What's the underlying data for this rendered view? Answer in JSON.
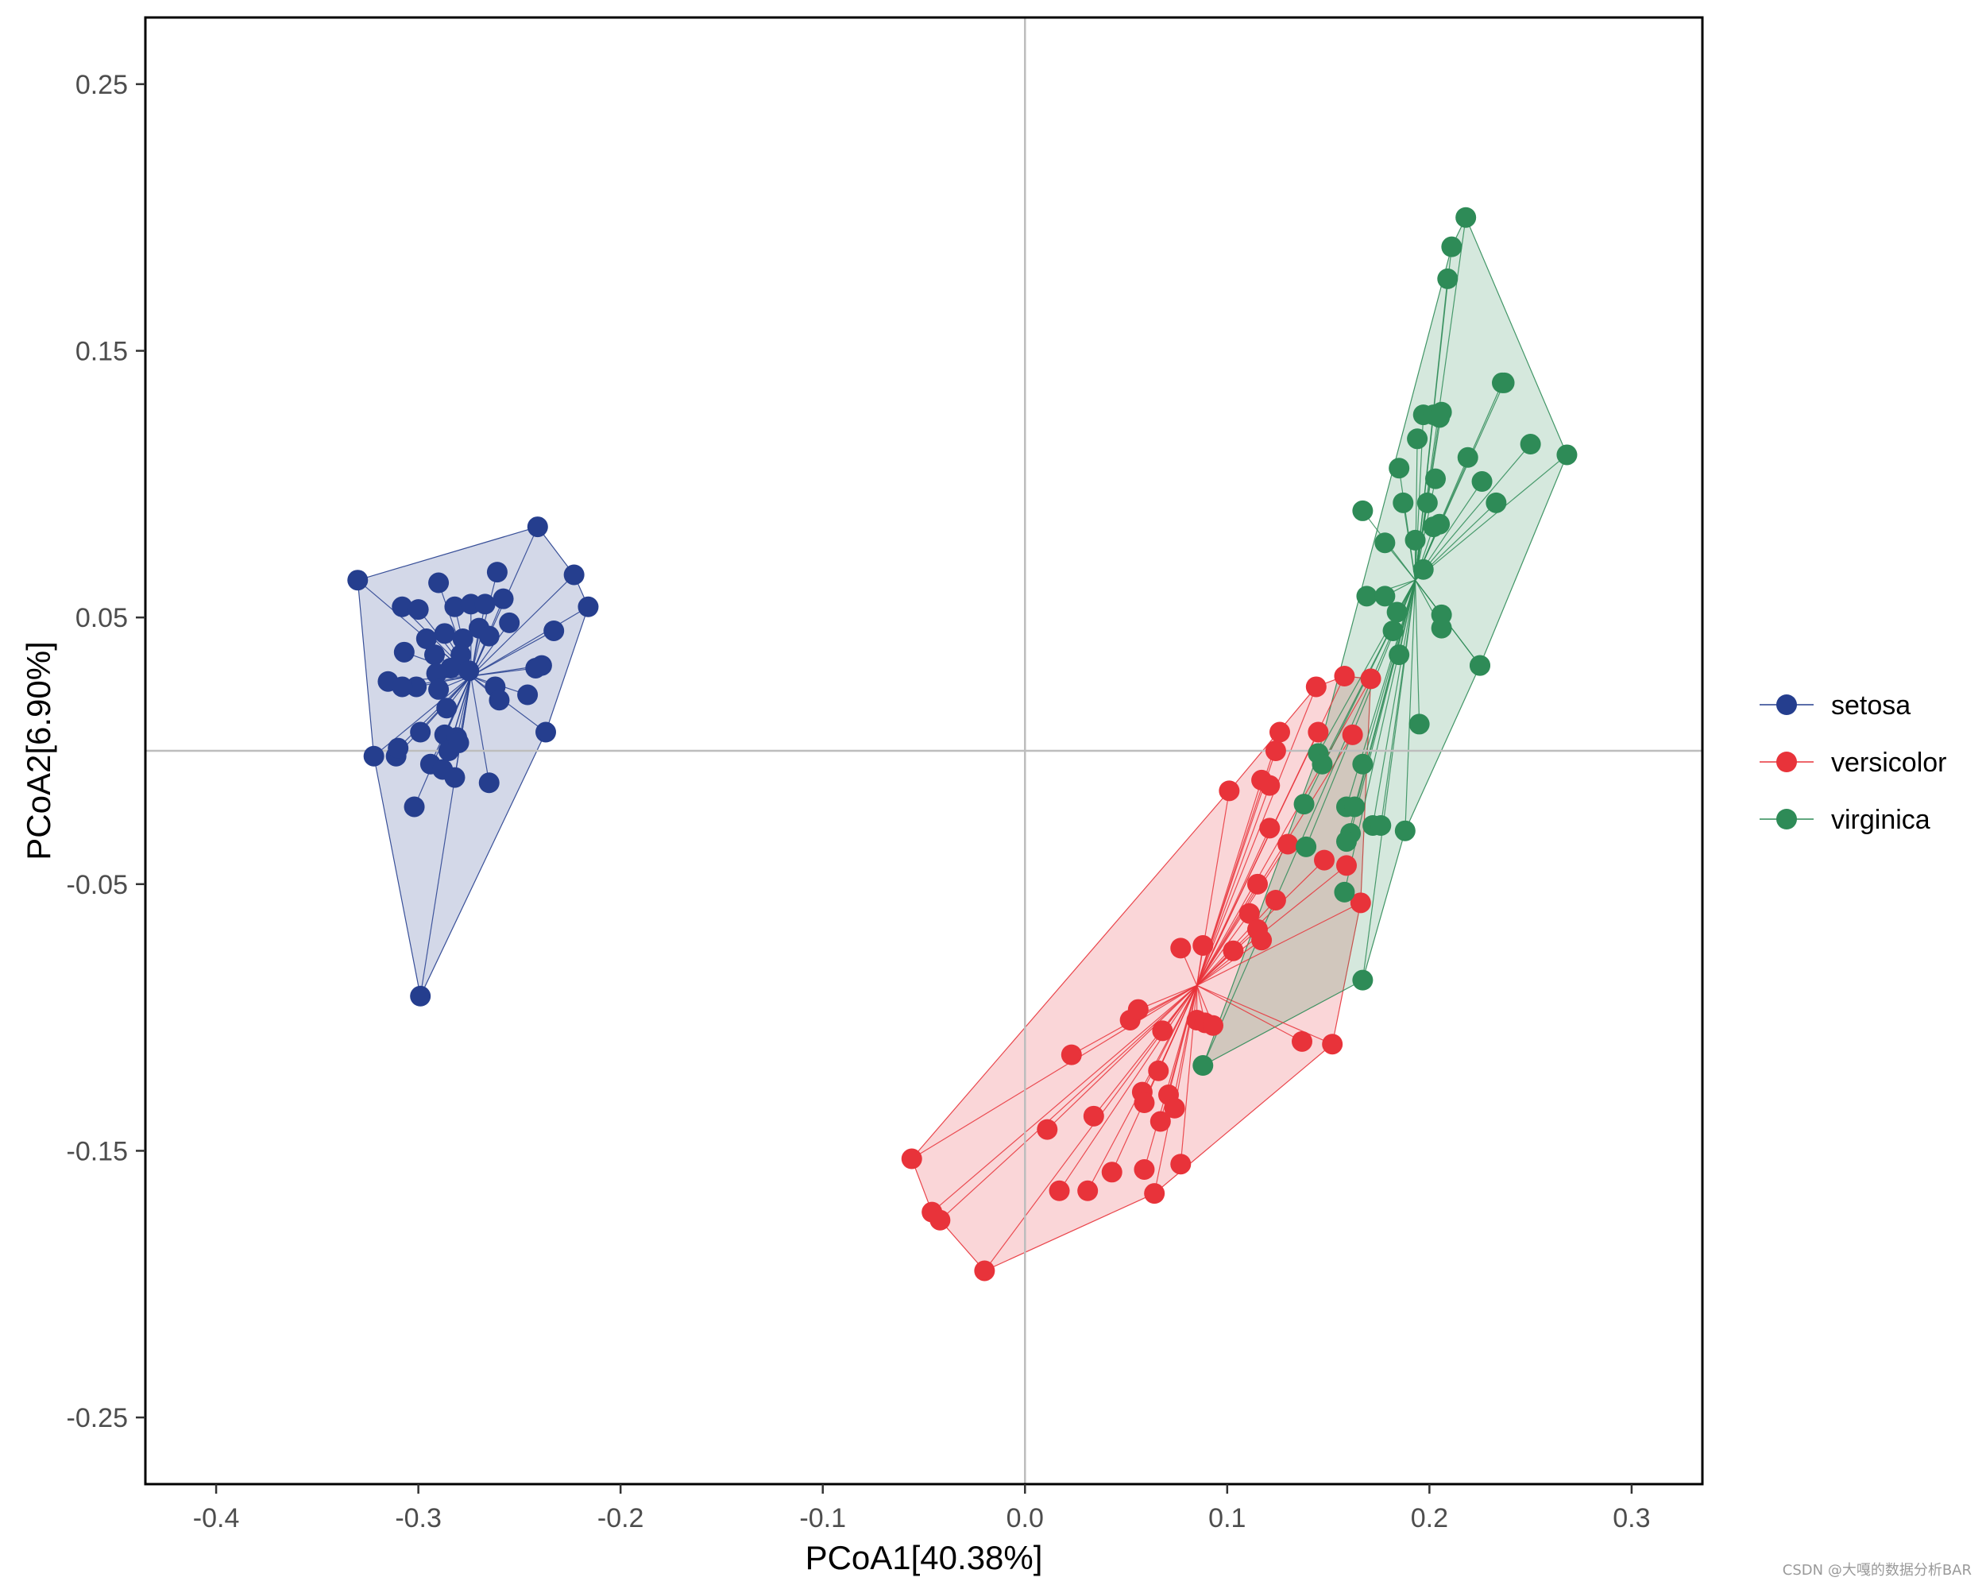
{
  "chart_data": {
    "type": "scatter",
    "title": "",
    "xlabel": "PCoA1[40.38%]",
    "ylabel": "PCoA2[6.90%]",
    "xlim": [
      -0.435,
      0.335
    ],
    "ylim": [
      -0.275,
      0.275
    ],
    "xticks": [
      -0.4,
      -0.3,
      -0.2,
      -0.1,
      0.0,
      0.1,
      0.2,
      0.3
    ],
    "xtick_labels": [
      "-0.4",
      "-0.3",
      "-0.2",
      "-0.1",
      "0.0",
      "0.1",
      "0.2",
      "0.3"
    ],
    "yticks": [
      0.25,
      0.15,
      0.05,
      -0.05,
      -0.15,
      -0.25
    ],
    "ytick_labels": [
      "0.25",
      "0.15",
      "0.05",
      "-0.05",
      "-0.15",
      "-0.25"
    ],
    "reference_lines": {
      "x": 0,
      "y": 0
    },
    "grid": false,
    "legend_position": "right",
    "series": [
      {
        "name": "setosa",
        "color": "#253E8E",
        "centroid": [
          -0.274,
          0.028
        ],
        "hull": [
          [
            -0.33,
            0.064
          ],
          [
            -0.241,
            0.084
          ],
          [
            -0.223,
            0.066
          ],
          [
            -0.216,
            0.054
          ],
          [
            -0.237,
            0.007
          ],
          [
            -0.299,
            -0.092
          ],
          [
            -0.322,
            -0.002
          ]
        ],
        "points": [
          [
            -0.33,
            0.064
          ],
          [
            -0.241,
            0.084
          ],
          [
            -0.223,
            0.066
          ],
          [
            -0.216,
            0.054
          ],
          [
            -0.237,
            0.007
          ],
          [
            -0.299,
            -0.092
          ],
          [
            -0.322,
            -0.002
          ],
          [
            -0.302,
            -0.021
          ],
          [
            -0.308,
            0.054
          ],
          [
            -0.3,
            0.053
          ],
          [
            -0.29,
            0.063
          ],
          [
            -0.282,
            0.054
          ],
          [
            -0.274,
            0.055
          ],
          [
            -0.267,
            0.055
          ],
          [
            -0.261,
            0.067
          ],
          [
            -0.258,
            0.057
          ],
          [
            -0.255,
            0.048
          ],
          [
            -0.296,
            0.042
          ],
          [
            -0.287,
            0.044
          ],
          [
            -0.278,
            0.042
          ],
          [
            -0.27,
            0.046
          ],
          [
            -0.265,
            0.043
          ],
          [
            -0.307,
            0.037
          ],
          [
            -0.292,
            0.036
          ],
          [
            -0.279,
            0.036
          ],
          [
            -0.284,
            0.031
          ],
          [
            -0.291,
            0.029
          ],
          [
            -0.275,
            0.03
          ],
          [
            -0.233,
            0.045
          ],
          [
            -0.315,
            0.026
          ],
          [
            -0.301,
            0.024
          ],
          [
            -0.308,
            0.024
          ],
          [
            -0.29,
            0.023
          ],
          [
            -0.262,
            0.024
          ],
          [
            -0.26,
            0.019
          ],
          [
            -0.246,
            0.021
          ],
          [
            -0.239,
            0.032
          ],
          [
            -0.242,
            0.031
          ],
          [
            -0.286,
            0.016
          ],
          [
            -0.299,
            0.007
          ],
          [
            -0.287,
            0.006
          ],
          [
            -0.281,
            0.005
          ],
          [
            -0.311,
            -0.002
          ],
          [
            -0.294,
            -0.005
          ],
          [
            -0.288,
            -0.007
          ],
          [
            -0.282,
            -0.01
          ],
          [
            -0.265,
            -0.012
          ],
          [
            -0.31,
            0.001
          ],
          [
            -0.285,
            0.0
          ],
          [
            -0.28,
            0.003
          ]
        ]
      },
      {
        "name": "versicolor",
        "color": "#E8333A",
        "centroid": [
          0.085,
          -0.088
        ],
        "hull": [
          [
            -0.056,
            -0.153
          ],
          [
            -0.046,
            -0.173
          ],
          [
            -0.042,
            -0.176
          ],
          [
            -0.02,
            -0.195
          ],
          [
            0.064,
            -0.166
          ],
          [
            0.152,
            -0.11
          ],
          [
            0.166,
            -0.057
          ],
          [
            0.171,
            0.027
          ],
          [
            0.158,
            0.028
          ],
          [
            0.144,
            0.024
          ],
          [
            0.101,
            -0.015
          ]
        ],
        "points": [
          [
            -0.056,
            -0.153
          ],
          [
            -0.046,
            -0.173
          ],
          [
            -0.042,
            -0.176
          ],
          [
            -0.02,
            -0.195
          ],
          [
            0.064,
            -0.166
          ],
          [
            0.152,
            -0.11
          ],
          [
            0.166,
            -0.057
          ],
          [
            0.171,
            0.027
          ],
          [
            0.158,
            0.028
          ],
          [
            0.144,
            0.024
          ],
          [
            0.101,
            -0.015
          ],
          [
            0.011,
            -0.142
          ],
          [
            0.023,
            -0.114
          ],
          [
            0.017,
            -0.165
          ],
          [
            0.031,
            -0.165
          ],
          [
            0.034,
            -0.137
          ],
          [
            0.043,
            -0.158
          ],
          [
            0.052,
            -0.101
          ],
          [
            0.056,
            -0.097
          ],
          [
            0.058,
            -0.128
          ],
          [
            0.059,
            -0.132
          ],
          [
            0.059,
            -0.157
          ],
          [
            0.066,
            -0.12
          ],
          [
            0.067,
            -0.139
          ],
          [
            0.068,
            -0.105
          ],
          [
            0.071,
            -0.129
          ],
          [
            0.074,
            -0.134
          ],
          [
            0.077,
            -0.155
          ],
          [
            0.077,
            -0.074
          ],
          [
            0.085,
            -0.101
          ],
          [
            0.088,
            -0.073
          ],
          [
            0.089,
            -0.102
          ],
          [
            0.093,
            -0.103
          ],
          [
            0.103,
            -0.075
          ],
          [
            0.111,
            -0.061
          ],
          [
            0.115,
            -0.067
          ],
          [
            0.117,
            -0.071
          ],
          [
            0.115,
            -0.05
          ],
          [
            0.117,
            -0.011
          ],
          [
            0.121,
            -0.013
          ],
          [
            0.121,
            -0.029
          ],
          [
            0.124,
            0.0
          ],
          [
            0.126,
            0.007
          ],
          [
            0.124,
            -0.056
          ],
          [
            0.13,
            -0.035
          ],
          [
            0.145,
            0.007
          ],
          [
            0.148,
            -0.041
          ],
          [
            0.159,
            -0.043
          ],
          [
            0.162,
            0.006
          ],
          [
            0.137,
            -0.109
          ]
        ]
      },
      {
        "name": "virginica",
        "color": "#2E8B57",
        "centroid": [
          0.193,
          0.064
        ],
        "hull": [
          [
            0.088,
            -0.118
          ],
          [
            0.167,
            -0.086
          ],
          [
            0.188,
            -0.03
          ],
          [
            0.225,
            0.032
          ],
          [
            0.268,
            0.111
          ],
          [
            0.218,
            0.2
          ],
          [
            0.211,
            0.189
          ],
          [
            0.145,
            -0.001
          ]
        ],
        "points": [
          [
            0.088,
            -0.118
          ],
          [
            0.167,
            -0.086
          ],
          [
            0.188,
            -0.03
          ],
          [
            0.225,
            0.032
          ],
          [
            0.268,
            0.111
          ],
          [
            0.218,
            0.2
          ],
          [
            0.211,
            0.189
          ],
          [
            0.145,
            -0.001
          ],
          [
            0.209,
            0.177
          ],
          [
            0.236,
            0.138
          ],
          [
            0.237,
            0.138
          ],
          [
            0.25,
            0.115
          ],
          [
            0.197,
            0.126
          ],
          [
            0.202,
            0.126
          ],
          [
            0.206,
            0.127
          ],
          [
            0.194,
            0.117
          ],
          [
            0.205,
            0.125
          ],
          [
            0.219,
            0.11
          ],
          [
            0.185,
            0.106
          ],
          [
            0.203,
            0.102
          ],
          [
            0.226,
            0.101
          ],
          [
            0.233,
            0.093
          ],
          [
            0.167,
            0.09
          ],
          [
            0.187,
            0.093
          ],
          [
            0.199,
            0.093
          ],
          [
            0.205,
            0.085
          ],
          [
            0.202,
            0.084
          ],
          [
            0.178,
            0.078
          ],
          [
            0.193,
            0.079
          ],
          [
            0.197,
            0.068
          ],
          [
            0.169,
            0.058
          ],
          [
            0.178,
            0.058
          ],
          [
            0.182,
            0.045
          ],
          [
            0.184,
            0.052
          ],
          [
            0.206,
            0.051
          ],
          [
            0.206,
            0.046
          ],
          [
            0.185,
            0.036
          ],
          [
            0.225,
            0.032
          ],
          [
            0.195,
            0.01
          ],
          [
            0.138,
            -0.02
          ],
          [
            0.147,
            -0.005
          ],
          [
            0.167,
            -0.005
          ],
          [
            0.159,
            -0.021
          ],
          [
            0.163,
            -0.021
          ],
          [
            0.161,
            -0.031
          ],
          [
            0.172,
            -0.028
          ],
          [
            0.176,
            -0.028
          ],
          [
            0.139,
            -0.036
          ],
          [
            0.159,
            -0.034
          ],
          [
            0.158,
            -0.053
          ]
        ]
      }
    ]
  },
  "legend": {
    "items": [
      {
        "label": "setosa",
        "color": "#253E8E"
      },
      {
        "label": "versicolor",
        "color": "#E8333A"
      },
      {
        "label": "virginica",
        "color": "#2E8B57"
      }
    ]
  },
  "watermark": "CSDN @大嘎的数据分析BAR"
}
